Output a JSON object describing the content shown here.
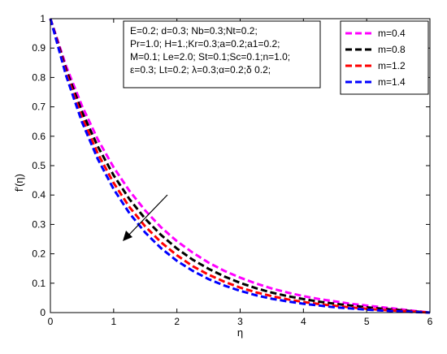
{
  "chart_data": {
    "type": "line",
    "xlabel": "η",
    "ylabel": "f′(η)",
    "xlim": [
      0,
      6
    ],
    "ylim": [
      0,
      1
    ],
    "xticks": [
      "0",
      "1",
      "2",
      "3",
      "4",
      "5",
      "6"
    ],
    "yticks": [
      "0",
      "0.1",
      "0.2",
      "0.3",
      "0.4",
      "0.5",
      "0.6",
      "0.7",
      "0.8",
      "0.9",
      "1"
    ],
    "grid": false,
    "legend_position": "top-right",
    "x": [
      0,
      0.25,
      0.5,
      0.75,
      1,
      1.25,
      1.5,
      1.75,
      2,
      2.25,
      2.5,
      2.75,
      3,
      3.25,
      3.5,
      3.75,
      4,
      4.25,
      4.5,
      4.75,
      5,
      5.25,
      5.5,
      5.75,
      6
    ],
    "series": [
      {
        "name": "m=0.4",
        "color": "#ff00ff",
        "values": [
          1,
          0.838,
          0.703,
          0.589,
          0.494,
          0.414,
          0.347,
          0.29,
          0.243,
          0.204,
          0.17,
          0.142,
          0.119,
          0.099,
          0.082,
          0.068,
          0.056,
          0.046,
          0.038,
          0.03,
          0.024,
          0.018,
          0.012,
          0.006,
          0
        ]
      },
      {
        "name": "m=0.8",
        "color": "#000000",
        "values": [
          1,
          0.826,
          0.683,
          0.565,
          0.467,
          0.386,
          0.319,
          0.264,
          0.218,
          0.18,
          0.149,
          0.123,
          0.101,
          0.083,
          0.068,
          0.056,
          0.046,
          0.037,
          0.03,
          0.024,
          0.018,
          0.013,
          0.009,
          0.004,
          0
        ]
      },
      {
        "name": "m=1.2",
        "color": "#ff0000",
        "values": [
          1,
          0.815,
          0.664,
          0.541,
          0.441,
          0.359,
          0.293,
          0.239,
          0.195,
          0.158,
          0.129,
          0.105,
          0.085,
          0.069,
          0.056,
          0.045,
          0.036,
          0.029,
          0.023,
          0.018,
          0.013,
          0.009,
          0.006,
          0.003,
          0
        ]
      },
      {
        "name": "m=1.4",
        "color": "#0000ff",
        "values": [
          1,
          0.805,
          0.648,
          0.522,
          0.42,
          0.338,
          0.272,
          0.219,
          0.176,
          0.142,
          0.114,
          0.092,
          0.074,
          0.059,
          0.047,
          0.038,
          0.03,
          0.024,
          0.018,
          0.014,
          0.01,
          0.007,
          0.004,
          0.002,
          0
        ]
      }
    ],
    "annotation_lines": [
      "E=0.2; d=0.3; Nb=0.3;Nt=0.2;",
      "Pr=1.0; H=1.;Kr=0.3;a=0.2;a1=0.2;",
      "M=0.1; Le=2.0; St=0.1;Sc=0.1;n=1.0;",
      "ε=0.3; Lt=0.2; λ=0.3;α=0.2;δ 0.2;"
    ]
  }
}
